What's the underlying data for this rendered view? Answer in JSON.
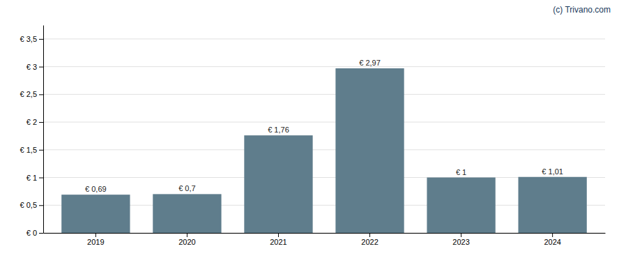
{
  "chart_data": {
    "type": "bar",
    "categories": [
      "2019",
      "2020",
      "2021",
      "2022",
      "2023",
      "2024"
    ],
    "values": [
      0.69,
      0.7,
      1.76,
      2.97,
      1.0,
      1.01
    ],
    "value_labels": [
      "€ 0,69",
      "€ 0,7",
      "€ 1,76",
      "€ 2,97",
      "€ 1",
      "€ 1,01"
    ],
    "color": "#5f7d8c",
    "ylim": [
      0,
      3.75
    ],
    "yticks": [
      {
        "value": 0,
        "label": "€ 0"
      },
      {
        "value": 0.5,
        "label": "€ 0,5"
      },
      {
        "value": 1.0,
        "label": "€ 1"
      },
      {
        "value": 1.5,
        "label": "€ 1,5"
      },
      {
        "value": 2.0,
        "label": "€ 2"
      },
      {
        "value": 2.5,
        "label": "€ 2,5"
      },
      {
        "value": 3.0,
        "label": "€ 3"
      },
      {
        "value": 3.5,
        "label": "€ 3,5"
      }
    ],
    "grid": true,
    "data_labels": true,
    "annotations": [
      "(c) Trivano.com"
    ]
  }
}
